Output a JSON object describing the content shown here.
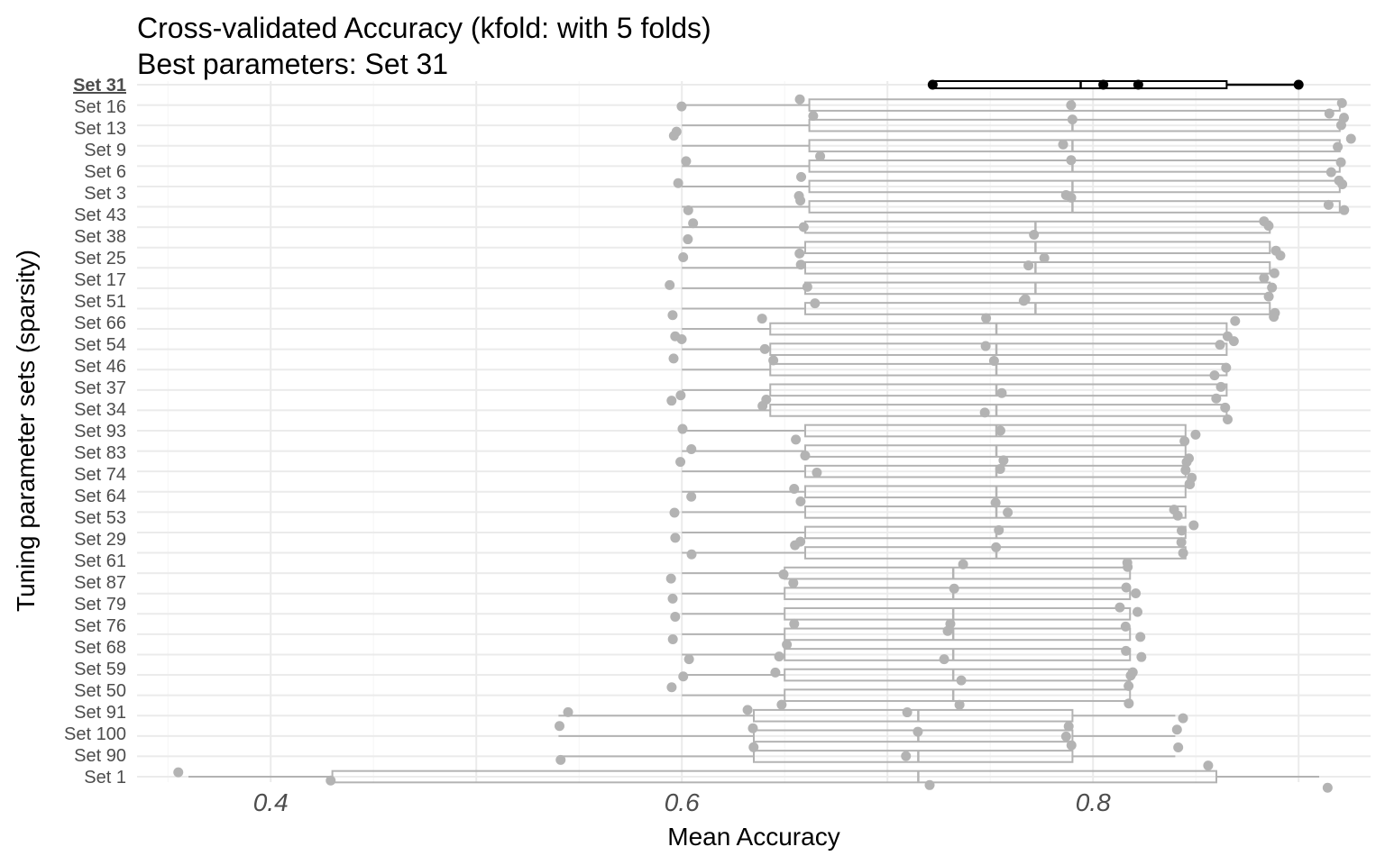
{
  "chart_data": {
    "type": "boxplot",
    "title": "Cross-validated Accuracy (kfold: with 5 folds)",
    "subtitle": "Best parameters: Set 31",
    "xlabel": "Mean Accuracy",
    "ylabel": "Tuning parameter sets (sparsity)",
    "xlim": [
      0.335,
      0.935
    ],
    "x_ticks": [
      0.4,
      0.6,
      0.8
    ],
    "x_tick_labels": [
      "0.4",
      "0.6",
      "0.8"
    ],
    "highlight_label": "Set 31",
    "best_box": {
      "min": 0.722,
      "q1": 0.722,
      "median": 0.794,
      "q3": 0.865,
      "max": 0.9
    },
    "best_points": [
      0.722,
      0.805,
      0.822,
      0.9
    ],
    "tick_labels": [
      "Set 31",
      "Set 16",
      "Set 13",
      "Set 9",
      "Set 6",
      "Set 3",
      "Set 43",
      "Set 38",
      "Set 25",
      "Set 17",
      "Set 51",
      "Set 66",
      "Set 54",
      "Set 46",
      "Set 37",
      "Set 34",
      "Set 93",
      "Set 83",
      "Set 74",
      "Set 64",
      "Set 53",
      "Set 29",
      "Set 61",
      "Set 87",
      "Set 79",
      "Set 76",
      "Set 68",
      "Set 59",
      "Set 50",
      "Set 91",
      "Set 100",
      "Set 90",
      "Set 1"
    ],
    "groups": [
      {
        "count": 6,
        "min": 0.6,
        "q1": 0.662,
        "median": 0.79,
        "q3": 0.92,
        "max": 0.92
      },
      {
        "count": 5,
        "min": 0.6,
        "q1": 0.66,
        "median": 0.772,
        "q3": 0.886,
        "max": 0.886
      },
      {
        "count": 5,
        "min": 0.6,
        "q1": 0.643,
        "median": 0.753,
        "q3": 0.865,
        "max": 0.865
      },
      {
        "count": 7,
        "min": 0.6,
        "q1": 0.66,
        "median": 0.753,
        "q3": 0.845,
        "max": 0.845
      },
      {
        "count": 7,
        "min": 0.6,
        "q1": 0.65,
        "median": 0.732,
        "q3": 0.818,
        "max": 0.818
      },
      {
        "count": 3,
        "min": 0.54,
        "q1": 0.635,
        "median": 0.715,
        "q3": 0.79,
        "max": 0.84
      },
      {
        "count": 1,
        "min": 0.36,
        "q1": 0.43,
        "median": 0.715,
        "q3": 0.86,
        "max": 0.91
      }
    ]
  }
}
